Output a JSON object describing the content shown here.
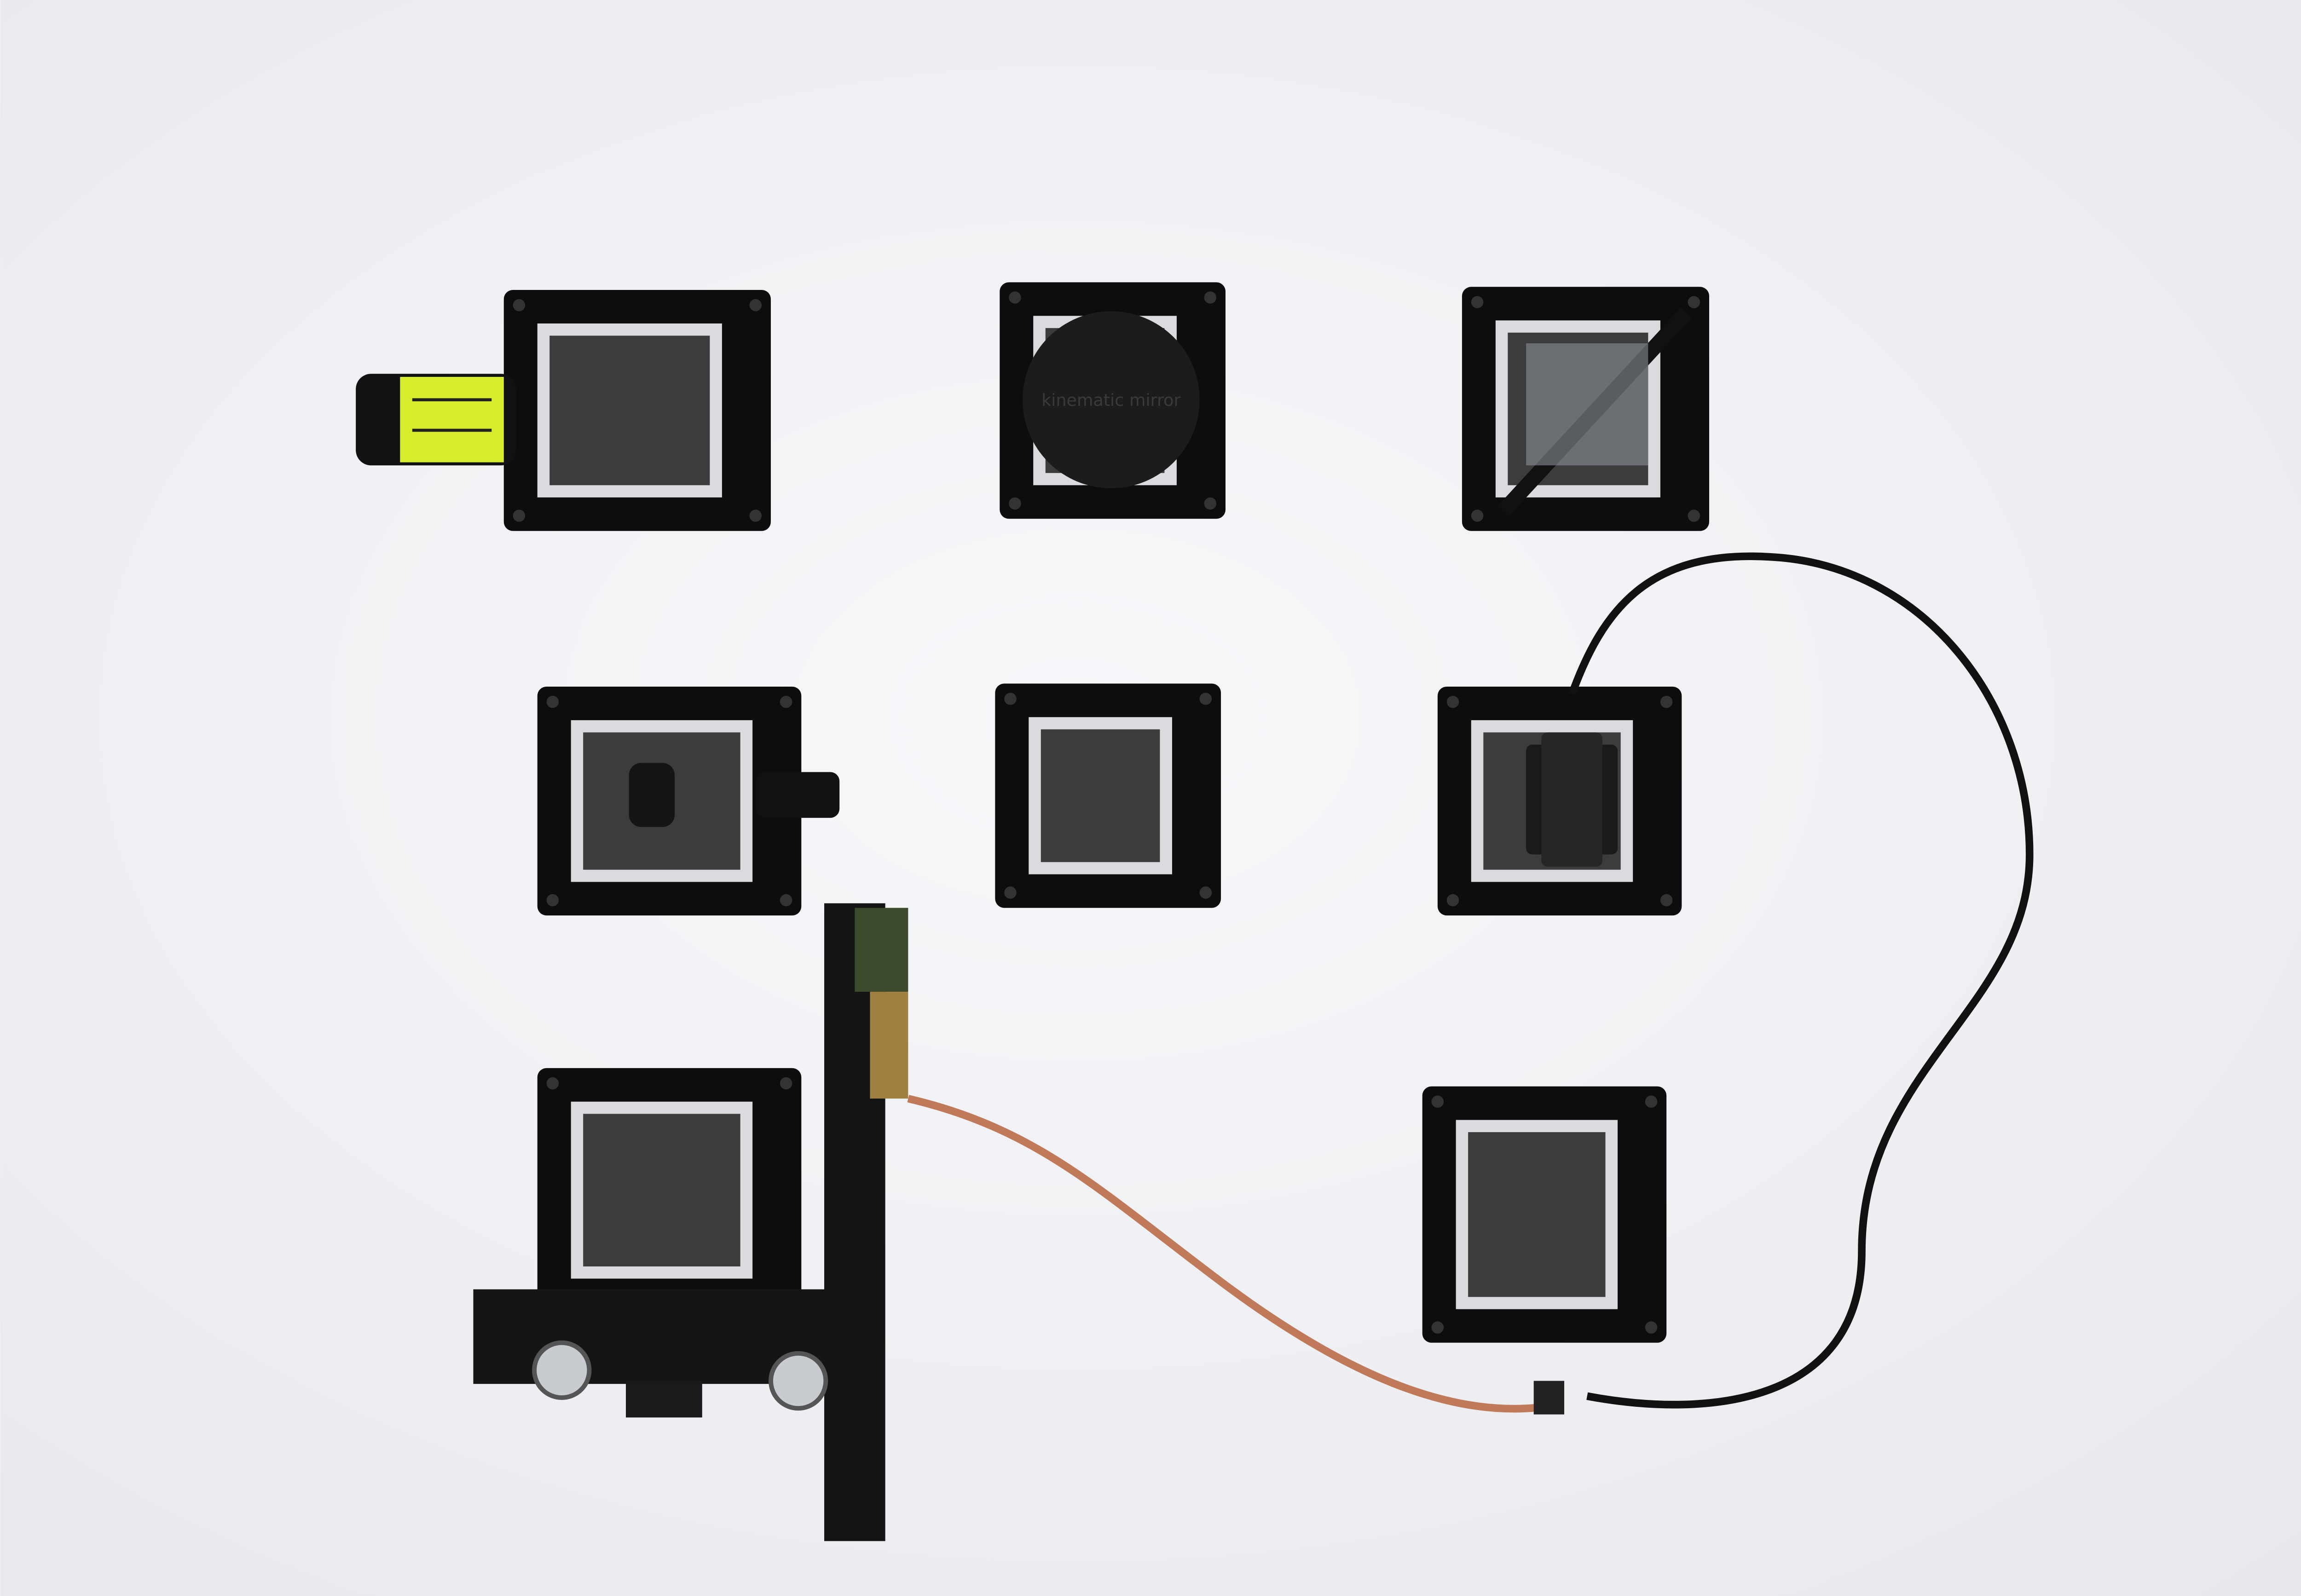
{
  "photo": {
    "engraving": "kinematic mirror"
  }
}
